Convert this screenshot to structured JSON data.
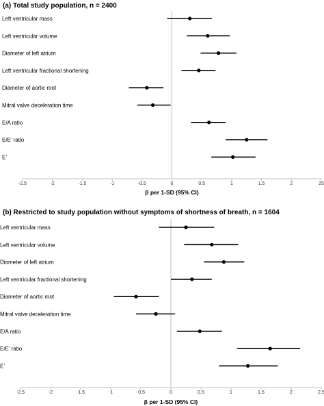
{
  "chart_data": [
    {
      "type": "scatter",
      "title": "(a) Total study population, n = 2400",
      "xlabel": "β per 1-SD (95% CI)",
      "xlim": [
        -2.5,
        2.5
      ],
      "xticks": [
        "-2.5",
        "-2",
        "-1.5",
        "-1",
        "-0.5",
        "0",
        "0.5",
        "1",
        "1.5",
        "2",
        "2.5"
      ],
      "xticks_shown": [
        "-2.5",
        "-2",
        "-1.5",
        "-1",
        "-0.5",
        "0",
        "0.5",
        "1",
        "1.5",
        "2",
        "25"
      ],
      "categories": [
        "Left ventricular mass",
        "Left ventricular volume",
        "Diameter of left atrium",
        "Left ventricular fractional shortening",
        "Diameter of aortic root",
        "Mitral valve deceleration time",
        "E/A ratio",
        "E/E’ ratio",
        "E’"
      ],
      "series": [
        {
          "estimate": [
            0.3,
            0.6,
            0.78,
            0.45,
            -0.42,
            -0.32,
            0.62,
            1.25,
            1.02
          ],
          "ci_low": [
            -0.08,
            0.25,
            0.48,
            0.16,
            -0.72,
            -0.58,
            0.32,
            0.9,
            0.66
          ],
          "ci_high": [
            0.67,
            0.97,
            1.08,
            0.73,
            -0.14,
            -0.02,
            0.9,
            1.6,
            1.4
          ]
        }
      ],
      "grid": false,
      "reference_line": 0
    },
    {
      "type": "scatter",
      "title": "(b) Restricted to study population without symptoms of shortness of breath, n = 1604",
      "xlabel": "β per 1-SD (95% CI)",
      "xlim": [
        -2.5,
        2.5
      ],
      "xticks": [
        "-2.5",
        "-2",
        "-1.5",
        "-1",
        "-0.5",
        "0",
        "0.5",
        "1",
        "1.5",
        "2",
        "2.5"
      ],
      "xticks_shown": [
        "-2.5",
        "-2",
        "-1.5",
        "-1",
        "-0.5",
        "0",
        "0.5",
        "1",
        "1.5",
        "2",
        "2.5"
      ],
      "categories": [
        "Left ventricular mass",
        "Left ventricular volume",
        "Diameter of left atrium",
        "Left ventricular fractional shortening",
        "Diameter of aortic root",
        "Mitral valve deceleration time",
        "E/A ratio",
        "E/E’ ratio",
        "E’"
      ],
      "series": [
        {
          "estimate": [
            0.25,
            0.68,
            0.88,
            0.35,
            -0.58,
            -0.25,
            0.48,
            1.65,
            1.28
          ],
          "ci_low": [
            -0.2,
            0.22,
            0.55,
            0.0,
            -0.95,
            -0.58,
            0.1,
            1.1,
            0.8
          ],
          "ci_high": [
            0.72,
            1.12,
            1.22,
            0.68,
            -0.2,
            0.07,
            0.85,
            2.15,
            1.78
          ]
        }
      ],
      "grid": false,
      "reference_line": 0
    }
  ]
}
